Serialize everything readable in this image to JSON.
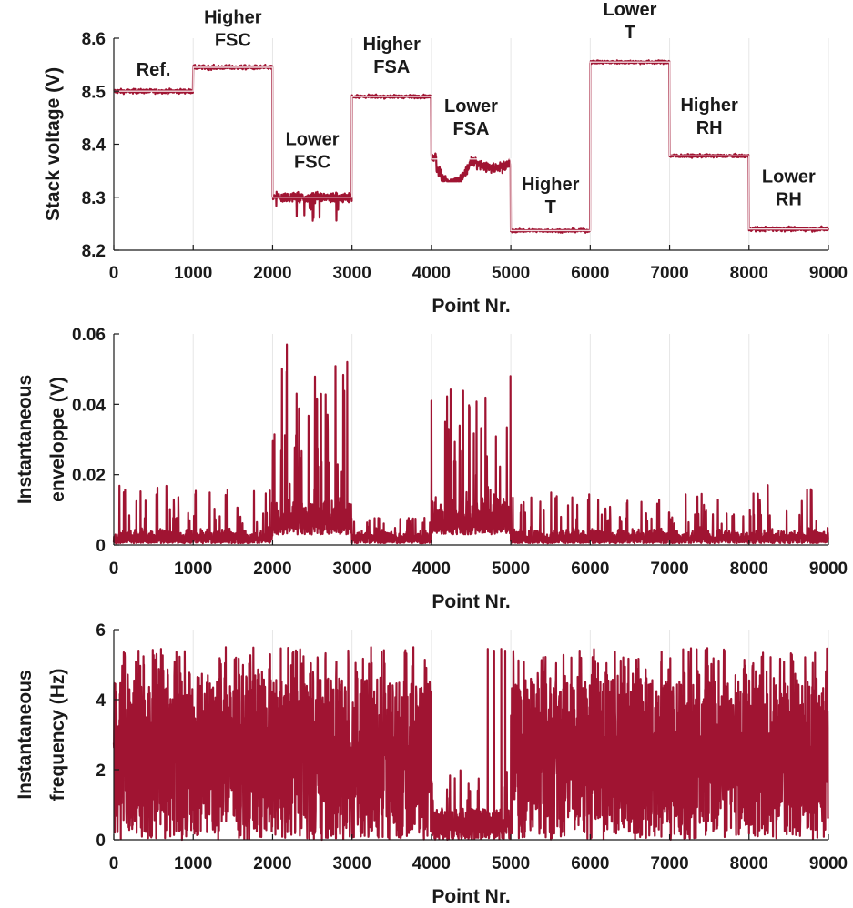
{
  "colors": {
    "series": "#a01432",
    "step_line": "#ffffff",
    "grid": "#e6e6e6",
    "axis": "#1a1a1a",
    "background": "#ffffff"
  },
  "chart_data": [
    {
      "type": "line",
      "id": "voltage",
      "xlabel": "Point Nr.",
      "ylabel": "Stack voltage (V)",
      "xlim": [
        0,
        9000
      ],
      "ylim": [
        8.2,
        8.6
      ],
      "grid": "vertical-only",
      "xticks": [
        "0",
        "1000",
        "2000",
        "3000",
        "4000",
        "5000",
        "6000",
        "7000",
        "8000",
        "9000"
      ],
      "yticks": [
        "8.2",
        "8.3",
        "8.4",
        "8.5",
        "8.6"
      ],
      "segments": [
        {
          "start": 0,
          "end": 1000,
          "level": 8.5,
          "noise": 0.004,
          "min": 8.49,
          "max": 8.51
        },
        {
          "start": 1000,
          "end": 2000,
          "level": 8.545,
          "noise": 0.004,
          "min": 8.535,
          "max": 8.553
        },
        {
          "start": 2000,
          "end": 3000,
          "level": 8.3,
          "noise": 0.009,
          "min": 8.24,
          "max": 8.315
        },
        {
          "start": 3000,
          "end": 4000,
          "level": 8.49,
          "noise": 0.003,
          "min": 8.48,
          "max": 8.497
        },
        {
          "start": 4000,
          "end": 5000,
          "level": 8.36,
          "noise": 0.009,
          "min": 8.33,
          "max": 8.39
        },
        {
          "start": 5000,
          "end": 6000,
          "level": 8.237,
          "noise": 0.003,
          "min": 8.228,
          "max": 8.245
        },
        {
          "start": 6000,
          "end": 7000,
          "level": 8.555,
          "noise": 0.003,
          "min": 8.548,
          "max": 8.562
        },
        {
          "start": 7000,
          "end": 8000,
          "level": 8.378,
          "noise": 0.003,
          "min": 8.37,
          "max": 8.385
        },
        {
          "start": 8000,
          "end": 9000,
          "level": 8.24,
          "noise": 0.004,
          "min": 8.23,
          "max": 8.252
        }
      ],
      "annotations": [
        {
          "lines": [
            "Ref."
          ],
          "x": 500,
          "y": 8.53
        },
        {
          "lines": [
            "Higher",
            "FSC"
          ],
          "x": 1500,
          "y": 8.585
        },
        {
          "lines": [
            "Lower",
            "FSC"
          ],
          "x": 2500,
          "y": 8.355
        },
        {
          "lines": [
            "Higher",
            "FSA"
          ],
          "x": 3500,
          "y": 8.535
        },
        {
          "lines": [
            "Lower",
            "FSA"
          ],
          "x": 4500,
          "y": 8.418
        },
        {
          "lines": [
            "Higher",
            "T"
          ],
          "x": 5500,
          "y": 8.27
        },
        {
          "lines": [
            "Lower",
            "T"
          ],
          "x": 6500,
          "y": 8.6
        },
        {
          "lines": [
            "Higher",
            "RH"
          ],
          "x": 7500,
          "y": 8.42
        },
        {
          "lines": [
            "Lower",
            "RH"
          ],
          "x": 8500,
          "y": 8.285
        }
      ]
    },
    {
      "type": "line",
      "id": "envelope",
      "xlabel": "Point Nr.",
      "ylabel_lines": [
        "Instantaneous",
        "enveloppe (V)"
      ],
      "xlim": [
        0,
        9000
      ],
      "ylim": [
        0,
        0.06
      ],
      "grid": "vertical-only",
      "xticks": [
        "0",
        "1000",
        "2000",
        "3000",
        "4000",
        "5000",
        "6000",
        "7000",
        "8000",
        "9000"
      ],
      "yticks": [
        "0",
        "0.02",
        "0.04",
        "0.06"
      ],
      "segments": [
        {
          "start": 0,
          "end": 1000,
          "max": 0.017
        },
        {
          "start": 1000,
          "end": 2000,
          "max": 0.016
        },
        {
          "start": 2000,
          "end": 3000,
          "max": 0.057
        },
        {
          "start": 3000,
          "end": 4000,
          "max": 0.008
        },
        {
          "start": 4000,
          "end": 5000,
          "max": 0.048
        },
        {
          "start": 5000,
          "end": 6000,
          "max": 0.015
        },
        {
          "start": 6000,
          "end": 7000,
          "max": 0.013
        },
        {
          "start": 7000,
          "end": 8000,
          "max": 0.015
        },
        {
          "start": 8000,
          "end": 9000,
          "max": 0.018
        }
      ]
    },
    {
      "type": "line",
      "id": "frequency",
      "xlabel": "Point Nr.",
      "ylabel_lines": [
        "Instantaneous",
        "frequency (Hz)"
      ],
      "xlim": [
        0,
        9000
      ],
      "ylim": [
        0,
        6
      ],
      "grid": "vertical-only",
      "xticks": [
        "0",
        "1000",
        "2000",
        "3000",
        "4000",
        "5000",
        "6000",
        "7000",
        "8000",
        "9000"
      ],
      "yticks": [
        "0",
        "2",
        "4",
        "6"
      ],
      "segments": [
        {
          "start": 0,
          "end": 4000,
          "min": 0,
          "max": 5.5
        },
        {
          "start": 4000,
          "end": 5000,
          "min": 0,
          "max": 2.0
        },
        {
          "start": 5000,
          "end": 9000,
          "min": 0,
          "max": 5.5
        }
      ]
    }
  ]
}
